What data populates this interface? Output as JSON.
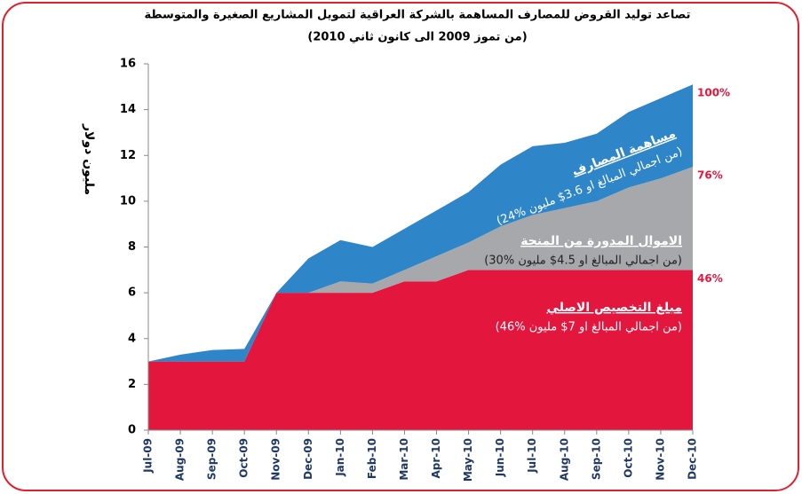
{
  "chart_data": {
    "type": "stacked_area",
    "title": "تصاعد توليد القروض للمصارف المساهمة بالشركة العراقية لتمويل المشاريع الصغيرة والمتوسطة",
    "subtitle": "(من تموز 2009 الى كانون ثاني 2010)",
    "y_label": "مليون دولار",
    "categories": [
      "Jul-09",
      "Aug-09",
      "Sep-09",
      "Oct-09",
      "Nov-09",
      "Dec-09",
      "Jan-10",
      "Feb-10",
      "Mar-10",
      "Apr-10",
      "May-10",
      "Jun-10",
      "Jul-10",
      "Aug-10",
      "Sep-10",
      "Oct-10",
      "Nov-10",
      "Dec-10"
    ],
    "series": [
      {
        "name": "مبلغ التخصيص الاصلي",
        "note": "(46% من اجمالي المبالغ او 7$ مليون)",
        "share_label": "46%",
        "color": "#e3173e",
        "values": [
          3,
          3,
          3,
          3,
          6,
          6,
          6,
          6,
          6.5,
          6.5,
          7,
          7,
          7,
          7,
          7,
          7,
          7,
          7
        ]
      },
      {
        "name": "الاموال المدورة من المنحة",
        "note": "(30% من اجمالي المبالغ او 4.5$ مليون)",
        "share_label": "76%",
        "color": "#a6a8ab",
        "values": [
          0,
          0,
          0,
          0,
          0,
          0,
          0.5,
          0.4,
          0.5,
          1.1,
          1.2,
          1.9,
          2.4,
          2.7,
          3.0,
          3.6,
          4.0,
          4.5
        ]
      },
      {
        "name": "مساهمة المصارف",
        "note": "(24% من اجمالي المبالغ او 3.6$ مليون)",
        "share_label": "100%",
        "color": "#2e86c8",
        "values": [
          0,
          0.3,
          0.5,
          0.55,
          0,
          1.5,
          1.8,
          1.6,
          1.8,
          2.0,
          2.2,
          2.7,
          3.0,
          2.85,
          2.95,
          3.3,
          3.5,
          3.6
        ]
      }
    ],
    "ylim": [
      0,
      16
    ],
    "yticks": [
      0,
      2,
      4,
      6,
      8,
      10,
      12,
      14,
      16
    ]
  }
}
